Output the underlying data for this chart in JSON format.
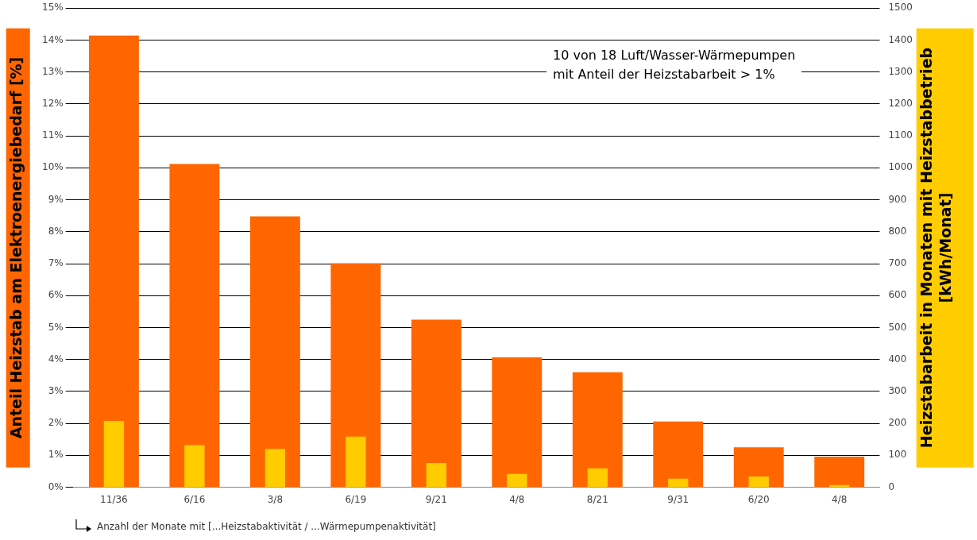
{
  "chart_data": {
    "type": "bar",
    "ylabel": "Anteil Heizstab am Elektroenergiebedarf [%]",
    "y2label": "Heizstabarbeit in Monaten mit Heizstabbetrieb\n[kWh/Monat]",
    "categories": [
      "11/36",
      "6/16",
      "3/8",
      "6/19",
      "9/21",
      "4/8",
      "8/21",
      "9/31",
      "6/20",
      "4/8"
    ],
    "series": [
      {
        "color": "#ff6600",
        "values": [
          14.14,
          10.12,
          8.48,
          7.01,
          5.25,
          4.07,
          3.6,
          2.06,
          1.25,
          0.96
        ]
      },
      {
        "color": "#ffcc00",
        "axis": "y2",
        "values": [
          208,
          132,
          120,
          159,
          76,
          42,
          59,
          27,
          34,
          7
        ]
      }
    ],
    "ylim": [
      0,
      15
    ],
    "yticks": [
      {
        "value": 0,
        "label": "0%"
      },
      {
        "value": 1,
        "label": "1%"
      },
      {
        "value": 2,
        "label": "2%"
      },
      {
        "value": 3,
        "label": "3%"
      },
      {
        "value": 4,
        "label": "4%"
      },
      {
        "value": 5,
        "label": "5%"
      },
      {
        "value": 6,
        "label": "6%"
      },
      {
        "value": 7,
        "label": "7%"
      },
      {
        "value": 8,
        "label": "8%"
      },
      {
        "value": 9,
        "label": "9%"
      },
      {
        "value": 10,
        "label": "10%"
      },
      {
        "value": 11,
        "label": "11%"
      },
      {
        "value": 12,
        "label": "12%"
      },
      {
        "value": 13,
        "label": "13%"
      },
      {
        "value": 14,
        "label": "14%"
      },
      {
        "value": 15,
        "label": "15%"
      }
    ],
    "y2lim": [
      0,
      1500
    ],
    "y2ticks": [
      0,
      100,
      200,
      300,
      400,
      500,
      600,
      700,
      800,
      900,
      1000,
      1100,
      1200,
      1300,
      1400,
      1500
    ],
    "grid": "y",
    "annotations": [
      "10 von 18 Luft/Wasser-Wärmepumpen\nmit Anteil der Heizstabarbeit > 1%",
      "Anzahl der Monate mit [...Heizstabaktivität / ...Wärmepumpenaktivität]"
    ]
  }
}
